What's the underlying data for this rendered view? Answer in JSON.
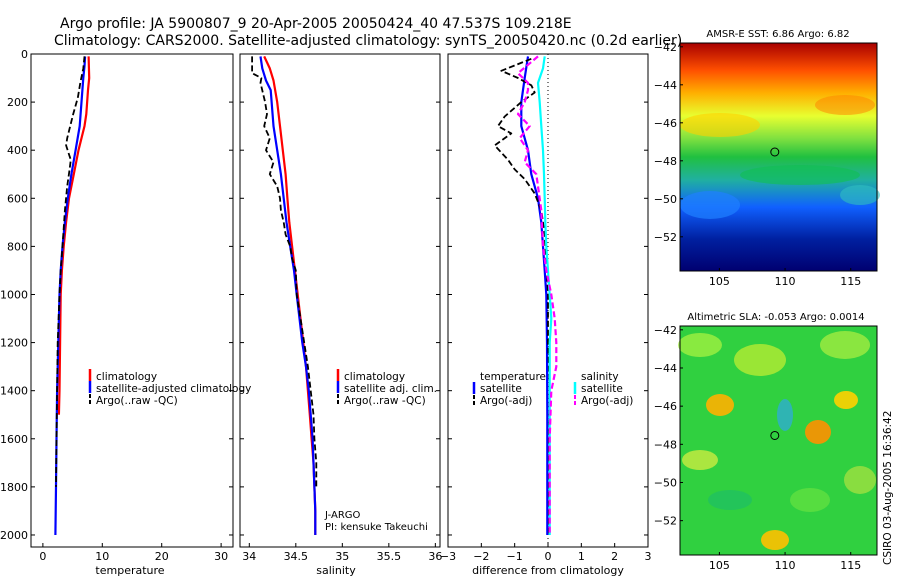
{
  "header": {
    "line1": "Argo profile: JA 5900807_9 20-Apr-2005 20050424_40 47.537S 109.218E",
    "line2": "Climatology: CARS2000. Satellite-adjusted climatology: synTS_20050420.nc (0.2d earlier)"
  },
  "side_text": "CSIRO 03-Aug-2005 16:36:42",
  "colors": {
    "red": "#ff0000",
    "blue": "#0000ff",
    "black": "#000000",
    "cyan": "#00ffff",
    "magenta": "#ff00ff"
  },
  "chart_data": [
    {
      "type": "line",
      "id": "temperature",
      "xlabel": "temperature",
      "ylabel": "",
      "xlim": [
        -2,
        32
      ],
      "ylim": [
        2050,
        0
      ],
      "xticks": [
        0,
        10,
        20,
        30
      ],
      "yticks": [
        0,
        200,
        400,
        600,
        800,
        1000,
        1200,
        1400,
        1600,
        1800,
        2000
      ],
      "legend": [
        "climatology",
        "satellite-adjusted climatology",
        "Argo(..raw -QC)"
      ],
      "series": [
        {
          "name": "climatology",
          "style": "red",
          "points": [
            [
              7.7,
              10
            ],
            [
              7.8,
              100
            ],
            [
              7.6,
              150
            ],
            [
              7.3,
              250
            ],
            [
              7.0,
              300
            ],
            [
              6.0,
              400
            ],
            [
              5.2,
              500
            ],
            [
              4.4,
              600
            ],
            [
              3.9,
              700
            ],
            [
              3.5,
              800
            ],
            [
              3.2,
              900
            ],
            [
              3.0,
              1000
            ],
            [
              2.9,
              1200
            ],
            [
              2.8,
              1400
            ],
            [
              2.7,
              1500
            ]
          ]
        },
        {
          "name": "satellite-adjusted climatology",
          "style": "blue",
          "points": [
            [
              7.1,
              10
            ],
            [
              7.0,
              50
            ],
            [
              6.8,
              100
            ],
            [
              6.5,
              200
            ],
            [
              6.2,
              300
            ],
            [
              5.5,
              400
            ],
            [
              4.8,
              500
            ],
            [
              4.2,
              600
            ],
            [
              3.7,
              700
            ],
            [
              3.3,
              800
            ],
            [
              3.0,
              900
            ],
            [
              2.8,
              1000
            ],
            [
              2.6,
              1200
            ],
            [
              2.4,
              1400
            ],
            [
              2.3,
              1600
            ],
            [
              2.2,
              1800
            ],
            [
              2.1,
              2000
            ]
          ]
        },
        {
          "name": "Argo(..raw -QC)",
          "style": "black-dash",
          "points": [
            [
              7.0,
              10
            ],
            [
              6.8,
              60
            ],
            [
              6.3,
              120
            ],
            [
              5.9,
              180
            ],
            [
              5.1,
              250
            ],
            [
              4.6,
              300
            ],
            [
              4.1,
              350
            ],
            [
              3.9,
              380
            ],
            [
              4.3,
              410
            ],
            [
              4.7,
              440
            ],
            [
              4.5,
              480
            ],
            [
              4.1,
              550
            ],
            [
              3.7,
              650
            ],
            [
              3.3,
              800
            ],
            [
              3.0,
              900
            ],
            [
              2.8,
              1000
            ],
            [
              2.5,
              1200
            ],
            [
              2.4,
              1400
            ],
            [
              2.3,
              1600
            ],
            [
              2.2,
              1800
            ]
          ]
        }
      ]
    },
    {
      "type": "line",
      "id": "salinity",
      "xlabel": "salinity",
      "ylabel": "",
      "xlim": [
        33.9,
        36.05
      ],
      "ylim": [
        2050,
        0
      ],
      "xticks": [
        34,
        34.5,
        35,
        35.5,
        36
      ],
      "yticks": [
        0,
        200,
        400,
        600,
        800,
        1000,
        1200,
        1400,
        1600,
        1800,
        2000
      ],
      "legend": [
        "climatology",
        "satellite adj. clim.",
        "Argo(..raw -QC)"
      ],
      "annotations": [
        "J-ARGO",
        "PI: kensuke Takeuchi"
      ],
      "series": [
        {
          "name": "climatology",
          "style": "red",
          "points": [
            [
              34.16,
              10
            ],
            [
              34.22,
              60
            ],
            [
              34.26,
              110
            ],
            [
              34.3,
              200
            ],
            [
              34.33,
              300
            ],
            [
              34.36,
              400
            ],
            [
              34.39,
              500
            ],
            [
              34.41,
              600
            ],
            [
              34.43,
              700
            ],
            [
              34.46,
              800
            ],
            [
              34.49,
              900
            ],
            [
              34.52,
              1000
            ],
            [
              34.55,
              1100
            ],
            [
              34.58,
              1200
            ],
            [
              34.61,
              1300
            ],
            [
              34.63,
              1400
            ],
            [
              34.65,
              1500
            ],
            [
              34.67,
              1600
            ],
            [
              34.69,
              1700
            ],
            [
              34.7,
              1800
            ],
            [
              34.71,
              1900
            ],
            [
              34.71,
              2000
            ]
          ]
        },
        {
          "name": "satellite adj. clim.",
          "style": "blue",
          "points": [
            [
              34.12,
              10
            ],
            [
              34.14,
              60
            ],
            [
              34.18,
              110
            ],
            [
              34.23,
              150
            ],
            [
              34.26,
              300
            ],
            [
              34.3,
              400
            ],
            [
              34.34,
              500
            ],
            [
              34.37,
              600
            ],
            [
              34.4,
              700
            ],
            [
              34.44,
              800
            ],
            [
              34.48,
              900
            ],
            [
              34.51,
              1000
            ],
            [
              34.54,
              1100
            ],
            [
              34.57,
              1200
            ],
            [
              34.61,
              1300
            ],
            [
              34.64,
              1400
            ],
            [
              34.66,
              1500
            ],
            [
              34.68,
              1600
            ],
            [
              34.69,
              1700
            ],
            [
              34.7,
              1800
            ],
            [
              34.71,
              1900
            ],
            [
              34.71,
              2000
            ]
          ]
        },
        {
          "name": "Argo(..raw -QC)",
          "style": "black-dash",
          "points": [
            [
              34.03,
              10
            ],
            [
              34.03,
              80
            ],
            [
              34.13,
              100
            ],
            [
              34.12,
              120
            ],
            [
              34.17,
              200
            ],
            [
              34.19,
              250
            ],
            [
              34.16,
              300
            ],
            [
              34.22,
              350
            ],
            [
              34.18,
              400
            ],
            [
              34.26,
              450
            ],
            [
              34.22,
              500
            ],
            [
              34.3,
              550
            ],
            [
              34.33,
              600
            ],
            [
              34.34,
              650
            ],
            [
              34.37,
              700
            ],
            [
              34.39,
              750
            ],
            [
              34.44,
              800
            ],
            [
              34.46,
              850
            ],
            [
              34.5,
              900
            ],
            [
              34.51,
              1000
            ],
            [
              34.55,
              1100
            ],
            [
              34.59,
              1200
            ],
            [
              34.63,
              1300
            ],
            [
              34.66,
              1400
            ],
            [
              34.69,
              1500
            ],
            [
              34.7,
              1600
            ],
            [
              34.72,
              1700
            ],
            [
              34.72,
              1800
            ]
          ]
        }
      ]
    },
    {
      "type": "line",
      "id": "difference",
      "xlabel": "difference from climatology",
      "ylabel": "",
      "xlim": [
        -3,
        3
      ],
      "ylim": [
        2050,
        0
      ],
      "xticks": [
        -3,
        -2,
        -1,
        0,
        1,
        2,
        3
      ],
      "yticks": [
        0,
        200,
        400,
        600,
        800,
        1000,
        1200,
        1400,
        1600,
        1800,
        2000
      ],
      "legend_left_title": "temperature",
      "legend_left": [
        "satellite",
        "Argo(-adj)"
      ],
      "legend_right_title": "salinity",
      "legend_right": [
        "satellite",
        "Argo(-adj)"
      ],
      "series": [
        {
          "name": "temperature satellite",
          "style": "blue",
          "points": [
            [
              -0.6,
              10
            ],
            [
              -0.7,
              100
            ],
            [
              -0.8,
              200
            ],
            [
              -0.8,
              300
            ],
            [
              -0.6,
              400
            ],
            [
              -0.5,
              500
            ],
            [
              -0.3,
              600
            ],
            [
              -0.2,
              700
            ],
            [
              -0.15,
              800
            ],
            [
              -0.1,
              900
            ],
            [
              -0.05,
              1000
            ],
            [
              -0.03,
              1200
            ],
            [
              -0.02,
              1500
            ],
            [
              -0.02,
              2000
            ]
          ]
        },
        {
          "name": "temperature Argo(-adj)",
          "style": "black-dash",
          "points": [
            [
              -0.5,
              20
            ],
            [
              -1.4,
              70
            ],
            [
              -0.9,
              100
            ],
            [
              -0.5,
              130
            ],
            [
              -0.4,
              160
            ],
            [
              -0.8,
              200
            ],
            [
              -1.3,
              260
            ],
            [
              -1.5,
              300
            ],
            [
              -1.1,
              330
            ],
            [
              -1.6,
              380
            ],
            [
              -1.4,
              410
            ],
            [
              -1.2,
              440
            ],
            [
              -1.0,
              480
            ],
            [
              -0.7,
              520
            ],
            [
              -0.4,
              580
            ],
            [
              -0.2,
              650
            ],
            [
              -0.1,
              750
            ],
            [
              0.0,
              1000
            ],
            [
              0.0,
              1200
            ],
            [
              0.05,
              1400
            ],
            [
              0.03,
              1600
            ],
            [
              0.03,
              1800
            ],
            [
              0.03,
              2000
            ]
          ]
        },
        {
          "name": "salinity satellite",
          "style": "cyan",
          "points": [
            [
              -0.1,
              10
            ],
            [
              -0.15,
              60
            ],
            [
              -0.3,
              120
            ],
            [
              -0.25,
              200
            ],
            [
              -0.2,
              300
            ],
            [
              -0.15,
              400
            ],
            [
              -0.12,
              500
            ],
            [
              -0.1,
              600
            ],
            [
              -0.08,
              700
            ],
            [
              -0.05,
              800
            ],
            [
              0.0,
              900
            ],
            [
              0.05,
              1000
            ],
            [
              0.1,
              1100
            ],
            [
              0.05,
              1200
            ],
            [
              0.05,
              1400
            ],
            [
              0.05,
              1600
            ],
            [
              0.05,
              1800
            ],
            [
              0.05,
              2000
            ]
          ]
        },
        {
          "name": "salinity Argo(-adj)",
          "style": "magenta-dash",
          "points": [
            [
              -0.3,
              10
            ],
            [
              -0.9,
              80
            ],
            [
              -0.6,
              120
            ],
            [
              -0.6,
              150
            ],
            [
              -0.7,
              200
            ],
            [
              -0.9,
              250
            ],
            [
              -0.55,
              300
            ],
            [
              -0.85,
              350
            ],
            [
              -0.6,
              400
            ],
            [
              -0.7,
              450
            ],
            [
              -0.35,
              500
            ],
            [
              -0.3,
              550
            ],
            [
              -0.2,
              650
            ],
            [
              -0.15,
              800
            ],
            [
              -0.05,
              900
            ],
            [
              0.1,
              1000
            ],
            [
              0.2,
              1100
            ],
            [
              0.25,
              1200
            ],
            [
              0.25,
              1300
            ],
            [
              0.1,
              1400
            ],
            [
              0.05,
              1600
            ],
            [
              0.05,
              1800
            ],
            [
              0.05,
              2000
            ]
          ]
        }
      ]
    },
    {
      "type": "heatmap",
      "id": "sst-map",
      "title": "AMSR-E SST: 6.86 Argo: 6.82",
      "xlim": [
        102,
        117
      ],
      "ylim": [
        -53.8,
        -41.8
      ],
      "xticks": [
        105,
        110,
        115
      ],
      "yticks": [
        -42,
        -44,
        -46,
        -48,
        -50,
        -52
      ],
      "marker": [
        109.218,
        -47.537
      ]
    },
    {
      "type": "heatmap",
      "id": "sla-map",
      "title": "Altimetric SLA: -0.053 Argo: 0.0014",
      "xlim": [
        102,
        117
      ],
      "ylim": [
        -53.8,
        -41.8
      ],
      "xticks": [
        105,
        110,
        115
      ],
      "yticks": [
        -42,
        -44,
        -46,
        -48,
        -50,
        -52
      ],
      "marker": [
        109.218,
        -47.537
      ]
    }
  ]
}
